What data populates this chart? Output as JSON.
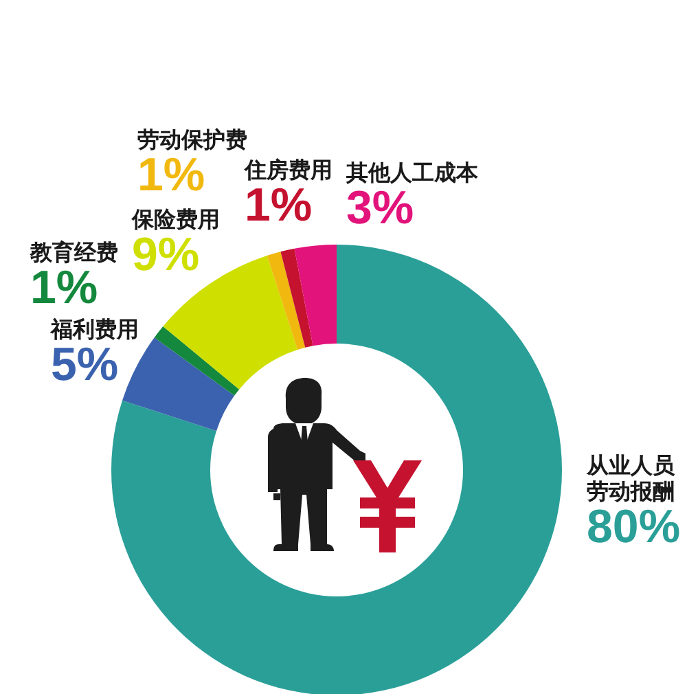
{
  "chart_data": {
    "type": "donut",
    "categories": [
      "从业人员劳动报酬",
      "福利费用",
      "教育经费",
      "保险费用",
      "劳动保护费",
      "住房费用",
      "其他人工成本"
    ],
    "values": [
      80,
      5,
      1,
      9,
      1,
      1,
      3
    ],
    "colors": [
      "#2a9f98",
      "#3b62ae",
      "#14893d",
      "#cfdf00",
      "#f1b80f",
      "#c4122f",
      "#e2137a"
    ],
    "value_labels": [
      "80%",
      "5%",
      "1%",
      "9%",
      "1%",
      "1%",
      "3%"
    ]
  }
}
